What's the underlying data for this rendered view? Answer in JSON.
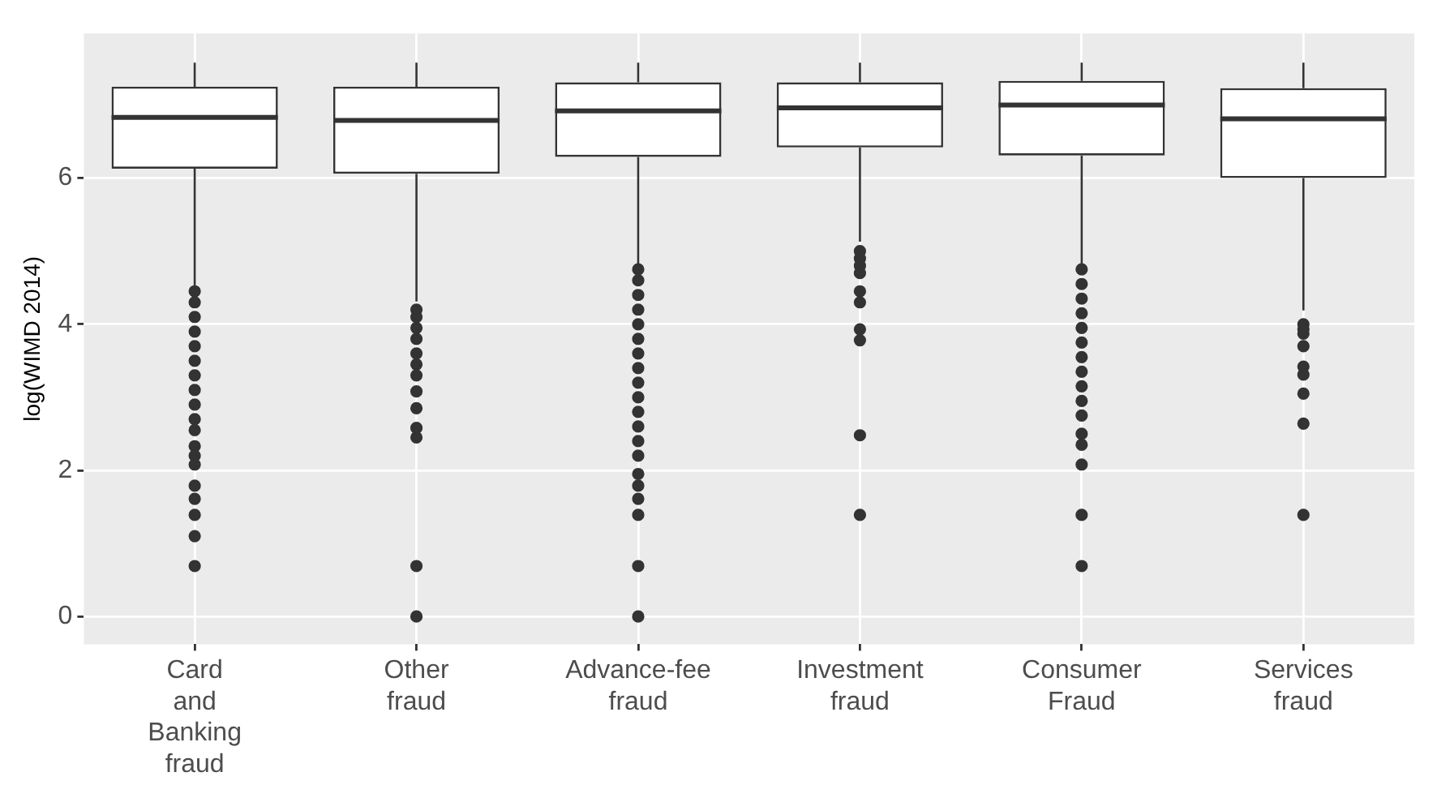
{
  "chart_data": {
    "type": "box",
    "ylabel": "log(WIMD 2014)",
    "categories": [
      "Card and Banking fraud",
      "Other fraud",
      "Advance-fee fraud",
      "Investment fraud",
      "Consumer Fraud",
      "Services fraud"
    ],
    "boxes": [
      {
        "low": 4.52,
        "q1": 6.13,
        "median": 6.83,
        "q3": 7.25,
        "high": 7.58,
        "outliers": [
          4.45,
          4.3,
          4.1,
          3.9,
          3.7,
          3.5,
          3.3,
          3.1,
          2.9,
          2.7,
          2.55,
          2.33,
          2.2,
          2.08,
          1.79,
          1.61,
          1.39,
          1.1,
          0.69
        ]
      },
      {
        "low": 4.31,
        "q1": 6.06,
        "median": 6.79,
        "q3": 7.25,
        "high": 7.58,
        "outliers": [
          4.2,
          4.1,
          3.95,
          3.8,
          3.6,
          3.45,
          3.3,
          3.08,
          2.85,
          2.58,
          2.45,
          0.69,
          0
        ]
      },
      {
        "low": 4.83,
        "q1": 6.29,
        "median": 6.92,
        "q3": 7.31,
        "high": 7.58,
        "outliers": [
          4.75,
          4.6,
          4.4,
          4.2,
          4.0,
          3.8,
          3.6,
          3.4,
          3.2,
          3.0,
          2.8,
          2.6,
          2.4,
          2.2,
          1.95,
          1.79,
          1.61,
          1.39,
          0.69,
          0
        ]
      },
      {
        "low": 5.13,
        "q1": 6.42,
        "median": 6.96,
        "q3": 7.31,
        "high": 7.58,
        "outliers": [
          5.0,
          4.9,
          4.8,
          4.7,
          4.45,
          4.3,
          3.93,
          3.78,
          2.48,
          1.39
        ]
      },
      {
        "low": 4.83,
        "q1": 6.31,
        "median": 7.0,
        "q3": 7.33,
        "high": 7.58,
        "outliers": [
          4.75,
          4.55,
          4.35,
          4.15,
          3.95,
          3.75,
          3.55,
          3.35,
          3.15,
          2.95,
          2.75,
          2.5,
          2.35,
          2.08,
          1.39,
          0.69
        ]
      },
      {
        "low": 4.19,
        "q1": 6.0,
        "median": 6.81,
        "q3": 7.23,
        "high": 7.58,
        "outliers": [
          4.0,
          3.93,
          3.87,
          3.7,
          3.42,
          3.31,
          3.05,
          2.64,
          1.39
        ]
      }
    ],
    "ylim": [
      -0.38,
      7.98
    ],
    "yticks": [
      0,
      2,
      4,
      6
    ],
    "grid": true,
    "legend": false
  }
}
